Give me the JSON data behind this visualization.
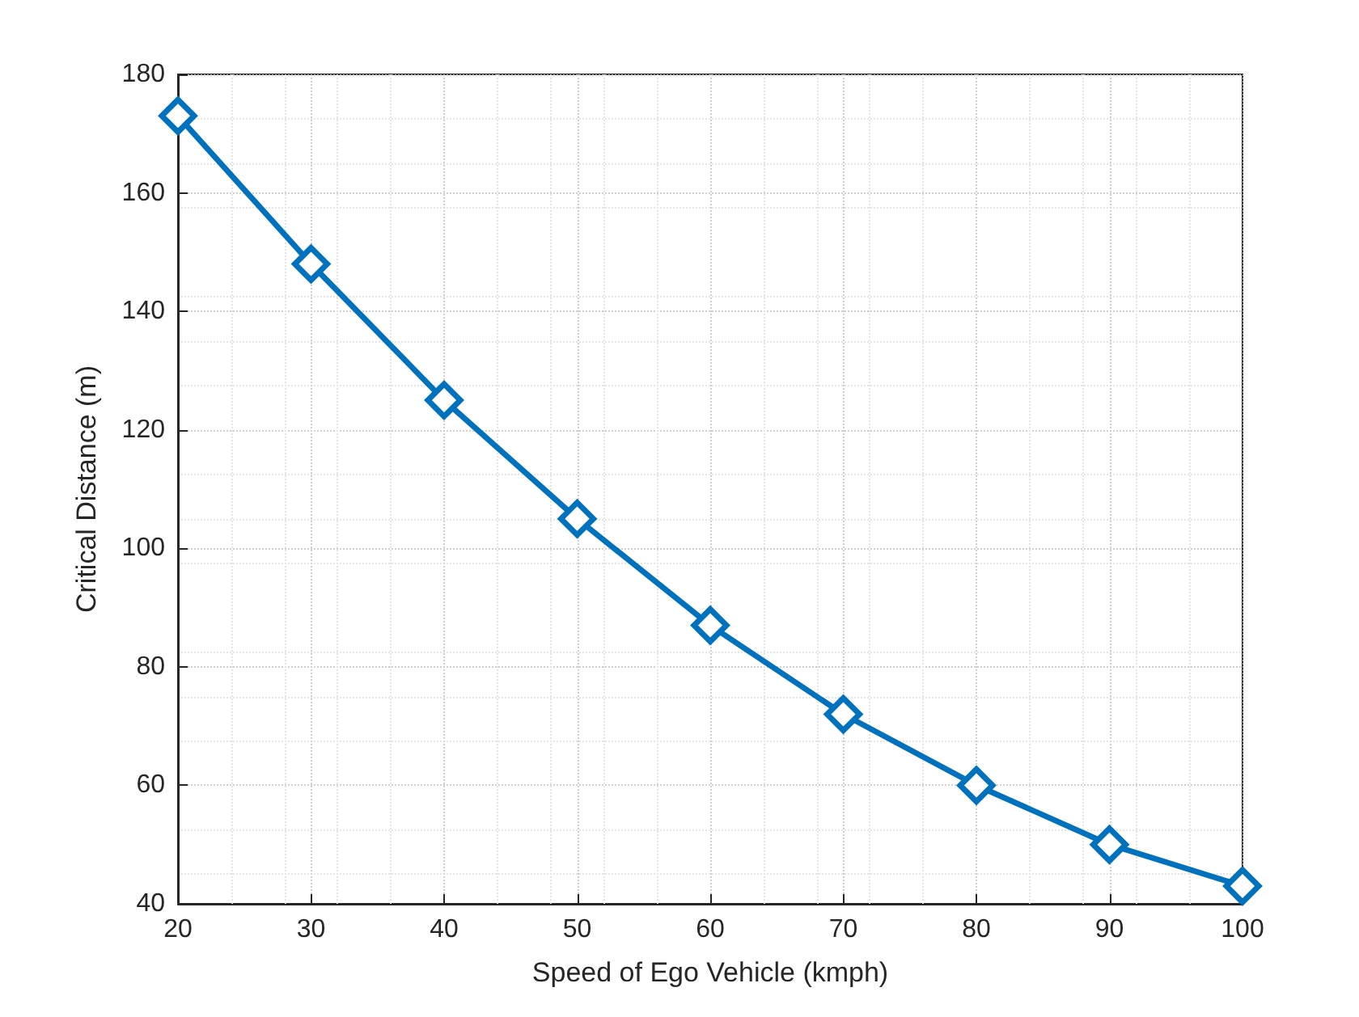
{
  "chart_data": {
    "type": "line",
    "xlabel": "Speed of Ego Vehicle (kmph)",
    "ylabel": "Critical Distance (m)",
    "x": [
      20,
      30,
      40,
      50,
      60,
      70,
      80,
      90,
      100
    ],
    "series": [
      {
        "color": "#0072bd",
        "values": [
          173,
          148,
          125,
          105,
          87,
          72,
          60,
          50,
          43
        ]
      }
    ],
    "xlim": [
      20,
      100
    ],
    "xticks": [
      20,
      30,
      40,
      50,
      60,
      70,
      80,
      90,
      100
    ],
    "ylim": [
      40,
      180
    ],
    "yticks": [
      40,
      60,
      80,
      100,
      120,
      140,
      160,
      180
    ],
    "grid": true,
    "marker": "diamond",
    "line_style": "solid"
  }
}
